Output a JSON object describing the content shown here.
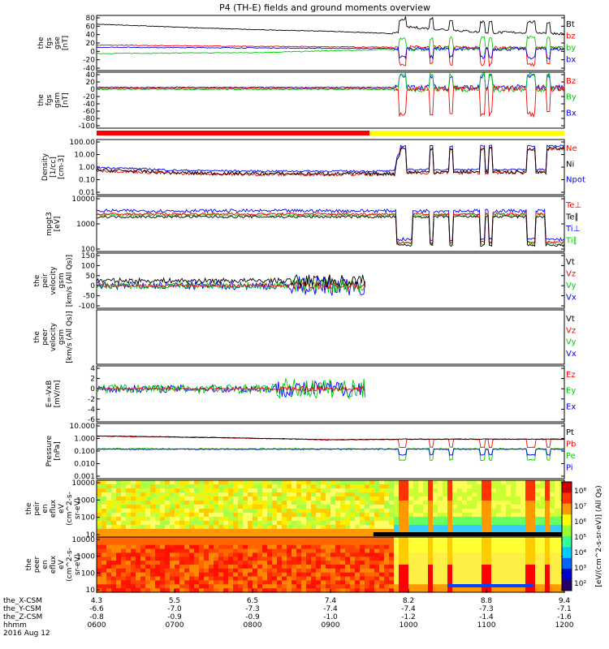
{
  "title": "P4 (TH-E) fields and ground moments overview",
  "panels": [
    {
      "id": "fgs",
      "ylabel": [
        "the",
        "fgs",
        "gse",
        "[nT]"
      ],
      "ticks": [
        "80",
        "60",
        "40",
        "20",
        "0",
        "-20",
        "-40"
      ],
      "legend": [
        {
          "t": "Bt",
          "c": "#000000"
        },
        {
          "t": "bz",
          "c": "#ff0000"
        },
        {
          "t": "by",
          "c": "#00cc00"
        },
        {
          "t": "bx",
          "c": "#0000ff"
        }
      ]
    },
    {
      "id": "fgs_gsm",
      "ylabel": [
        "the",
        "fgs",
        "gsm",
        "[nT]"
      ],
      "ticks": [
        "40",
        "20",
        "0",
        "-20",
        "-40",
        "-60",
        "-80",
        "-100"
      ],
      "legend": [
        {
          "t": "Bz",
          "c": "#ff0000"
        },
        {
          "t": "By",
          "c": "#00cc00"
        },
        {
          "t": "Bx",
          "c": "#0000ff"
        }
      ]
    },
    {
      "id": "density",
      "ylabel": [
        "Density",
        "[1/cc]",
        "[cm-3]"
      ],
      "ticks": [
        "100.00",
        "10.00",
        "1.00",
        "0.10",
        "0.01"
      ],
      "legend": [
        {
          "t": "Ne",
          "c": "#ff0000"
        },
        {
          "t": "Ni",
          "c": "#000000"
        },
        {
          "t": "Npot",
          "c": "#0000ff"
        }
      ]
    },
    {
      "id": "temp",
      "ylabel": [
        "mpgt3",
        "[eV]"
      ],
      "ticks": [
        "10000",
        "1000",
        "100"
      ],
      "legend": [
        {
          "t": "Te⊥",
          "c": "#ff0000"
        },
        {
          "t": "Te∥",
          "c": "#000000"
        },
        {
          "t": "Ti⊥",
          "c": "#0000ff"
        },
        {
          "t": "Ti∥",
          "c": "#00cc00"
        }
      ]
    },
    {
      "id": "peir_v",
      "ylabel": [
        "the",
        "peir",
        "velocity",
        "gsm",
        "[km/s (All Qs)]"
      ],
      "ticks": [
        "150",
        "100",
        "50",
        "0",
        "-50",
        "-100"
      ],
      "legend": [
        {
          "t": "Vt",
          "c": "#000000"
        },
        {
          "t": "Vz",
          "c": "#ff0000"
        },
        {
          "t": "Vy",
          "c": "#00cc00"
        },
        {
          "t": "Vx",
          "c": "#0000ff"
        }
      ]
    },
    {
      "id": "peer_v",
      "ylabel": [
        "the",
        "peer",
        "velocity",
        "gsm",
        "[km/s (All Qs)]"
      ],
      "ticks": [],
      "legend": [
        {
          "t": "Vt",
          "c": "#000000"
        },
        {
          "t": "Vz",
          "c": "#ff0000"
        },
        {
          "t": "Vy",
          "c": "#00cc00"
        },
        {
          "t": "Vx",
          "c": "#0000ff"
        }
      ]
    },
    {
      "id": "efield",
      "ylabel": [
        "E=-VxB",
        "[mV/m]"
      ],
      "ticks": [
        "4",
        "2",
        "0",
        "-2",
        "-4",
        "-6"
      ],
      "legend": [
        {
          "t": "Ez",
          "c": "#ff0000"
        },
        {
          "t": "Ey",
          "c": "#00cc00"
        },
        {
          "t": "Ex",
          "c": "#0000ff"
        }
      ]
    },
    {
      "id": "pressure",
      "ylabel": [
        "Pressure",
        "[nPa]"
      ],
      "ticks": [
        "10.000",
        "1.000",
        "0.100",
        "0.010",
        "0.001"
      ],
      "legend": [
        {
          "t": "Pt",
          "c": "#000000"
        },
        {
          "t": "Pb",
          "c": "#ff0000"
        },
        {
          "t": "Pe",
          "c": "#00cc00"
        },
        {
          "t": "Pi",
          "c": "#0000ff"
        }
      ]
    },
    {
      "id": "peir_spec",
      "ylabel": [
        "the",
        "peir",
        "en",
        "eflux",
        "eV",
        "(cm^2-s-",
        "sr-eV)"
      ],
      "ticks": [
        "10000",
        "1000",
        "100",
        "10"
      ],
      "legend": []
    },
    {
      "id": "peer_spec",
      "ylabel": [
        "the",
        "peer",
        "en",
        "eflux",
        "eV",
        "(cm^2-s-",
        "sr-eV)"
      ],
      "ticks": [
        "10000",
        "1000",
        "100",
        "10"
      ],
      "legend": []
    }
  ],
  "colorbar": {
    "ticks": [
      "10⁸",
      "10⁷",
      "10⁶",
      "10⁵",
      "10⁴",
      "10³",
      "10²"
    ],
    "label": "[eV/(cm^2-s-sr-eV)] (All Qs)"
  },
  "xaxis": {
    "row_labels": [
      "the_X-CSM",
      "the_Y-CSM",
      "the_Z-CSM",
      "hhmm",
      "2016 Aug 12"
    ],
    "ticks": [
      {
        "x": "4.3",
        "y": "-6.6",
        "z": "-0.8",
        "t": "0600"
      },
      {
        "x": "5.5",
        "y": "-7.0",
        "z": "-0.9",
        "t": "0700"
      },
      {
        "x": "6.5",
        "y": "-7.3",
        "z": "-0.9",
        "t": "0800"
      },
      {
        "x": "7.4",
        "y": "-7.4",
        "z": "-1.0",
        "t": "0900"
      },
      {
        "x": "8.2",
        "y": "-7.4",
        "z": "-1.2",
        "t": "1000"
      },
      {
        "x": "8.8",
        "y": "-7.3",
        "z": "-1.4",
        "t": "1100"
      },
      {
        "x": "9.4",
        "y": "-7.1",
        "z": "-1.6",
        "t": "1200"
      }
    ]
  },
  "chart_data": {
    "type": "line",
    "title": "P4 (TH-E) fields and ground moments overview",
    "x_range": [
      "2016-08-12 06:00",
      "2016-08-12 12:00"
    ],
    "mode_bar": [
      {
        "from": "06:00",
        "to": "09:30",
        "color": "#ff0000"
      },
      {
        "from": "09:30",
        "to": "12:00",
        "color": "#ffff00"
      }
    ],
    "series": [
      {
        "panel": "fgs",
        "name": "Bt",
        "anchor_x": [
          "06:00",
          "07:00",
          "08:00",
          "09:00",
          "09:50",
          "10:00",
          "11:00",
          "11:40",
          "12:00"
        ],
        "values": [
          65,
          58,
          52,
          48,
          42,
          58,
          45,
          45,
          42
        ]
      },
      {
        "panel": "fgs",
        "name": "bz",
        "anchor_x": [
          "06:00",
          "08:00",
          "09:50",
          "12:00"
        ],
        "values": [
          15,
          12,
          10,
          8
        ]
      },
      {
        "panel": "fgs",
        "name": "by",
        "anchor_x": [
          "06:00",
          "08:00",
          "09:50",
          "12:00"
        ],
        "values": [
          -5,
          -3,
          5,
          8
        ]
      },
      {
        "panel": "density",
        "name": "Ni",
        "anchor_x": [
          "06:00",
          "07:00",
          "08:00",
          "09:00",
          "09:50",
          "10:00",
          "11:00",
          "12:00"
        ],
        "values": [
          0.6,
          0.35,
          0.3,
          0.3,
          0.3,
          30,
          0.5,
          20
        ]
      },
      {
        "panel": "pressure",
        "name": "Pt",
        "anchor_x": [
          "06:00",
          "09:00",
          "10:00",
          "12:00"
        ],
        "values": [
          1.6,
          0.8,
          0.9,
          0.9
        ]
      }
    ]
  }
}
